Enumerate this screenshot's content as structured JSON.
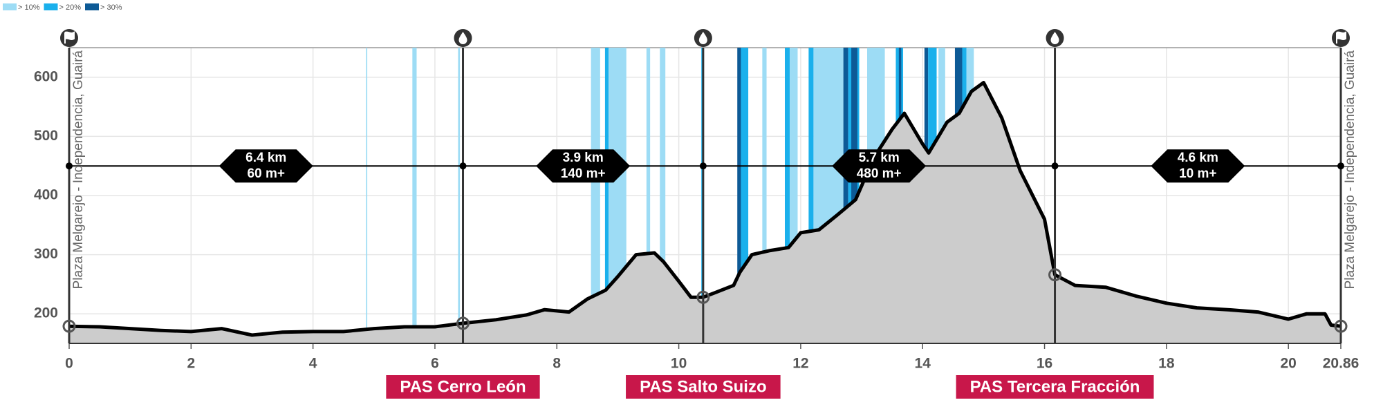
{
  "chart_data": {
    "type": "elevation-profile",
    "legend": [
      {
        "label": "> 10%",
        "color": "#9ddcf5"
      },
      {
        "label": "> 20%",
        "color": "#1ab0ec"
      },
      {
        "label": "> 30%",
        "color": "#0d5a96"
      }
    ],
    "route_name": "Plaza Melgarejo - Independencia, Guairá",
    "x": [
      0,
      0.5,
      1,
      1.5,
      2,
      2.5,
      3,
      3.5,
      4,
      4.5,
      5,
      5.5,
      6,
      6.46,
      7,
      7.5,
      7.8,
      8.2,
      8.5,
      8.8,
      9,
      9.3,
      9.6,
      9.75,
      10,
      10.2,
      10.4,
      10.6,
      10.9,
      11,
      11.2,
      11.5,
      11.8,
      12,
      12.3,
      12.6,
      12.9,
      13.2,
      13.5,
      13.7,
      14,
      14.1,
      14.4,
      14.6,
      14.8,
      15,
      15.3,
      15.6,
      16,
      16.17,
      16.5,
      17,
      17.5,
      18,
      18.5,
      19,
      19.5,
      20,
      20.3,
      20.6,
      20.7,
      20.86
    ],
    "values": [
      179,
      178,
      175,
      172,
      170,
      175,
      164,
      169,
      170,
      170,
      175,
      178,
      178,
      184,
      190,
      198,
      207,
      203,
      225,
      240,
      263,
      300,
      303,
      288,
      255,
      228,
      228,
      236,
      248,
      270,
      300,
      307,
      312,
      337,
      342,
      367,
      393,
      464,
      512,
      539,
      487,
      472,
      524,
      539,
      576,
      591,
      531,
      442,
      360,
      266,
      248,
      245,
      230,
      218,
      210,
      207,
      203,
      191,
      200,
      200,
      181,
      179
    ],
    "gradient_bands": [
      {
        "x0": 4.87,
        "x1": 4.89,
        "level": 0
      },
      {
        "x0": 5.63,
        "x1": 5.7,
        "level": 0
      },
      {
        "x0": 6.38,
        "x1": 6.41,
        "level": 0
      },
      {
        "x0": 8.56,
        "x1": 8.71,
        "level": 0
      },
      {
        "x0": 8.79,
        "x1": 8.85,
        "level": 1
      },
      {
        "x0": 8.85,
        "x1": 9.14,
        "level": 0
      },
      {
        "x0": 9.47,
        "x1": 9.53,
        "level": 0
      },
      {
        "x0": 9.69,
        "x1": 9.78,
        "level": 0
      },
      {
        "x0": 10.37,
        "x1": 10.41,
        "level": 1
      },
      {
        "x0": 10.96,
        "x1": 11.02,
        "level": 2
      },
      {
        "x0": 11.02,
        "x1": 11.14,
        "level": 1
      },
      {
        "x0": 11.37,
        "x1": 11.44,
        "level": 0
      },
      {
        "x0": 11.74,
        "x1": 11.82,
        "level": 1
      },
      {
        "x0": 11.82,
        "x1": 11.95,
        "level": 0
      },
      {
        "x0": 12.13,
        "x1": 12.21,
        "level": 1
      },
      {
        "x0": 12.21,
        "x1": 12.7,
        "level": 0
      },
      {
        "x0": 12.7,
        "x1": 12.78,
        "level": 2
      },
      {
        "x0": 12.78,
        "x1": 12.96,
        "level": 1
      },
      {
        "x0": 12.83,
        "x1": 12.93,
        "level": 2
      },
      {
        "x0": 13.09,
        "x1": 13.38,
        "level": 0
      },
      {
        "x0": 13.56,
        "x1": 13.68,
        "level": 1
      },
      {
        "x0": 13.61,
        "x1": 13.65,
        "level": 2
      },
      {
        "x0": 14.03,
        "x1": 14.09,
        "level": 2
      },
      {
        "x0": 14.09,
        "x1": 14.23,
        "level": 1
      },
      {
        "x0": 14.26,
        "x1": 14.37,
        "level": 0
      },
      {
        "x0": 14.53,
        "x1": 14.65,
        "level": 2
      },
      {
        "x0": 14.65,
        "x1": 14.72,
        "level": 1
      },
      {
        "x0": 14.72,
        "x1": 14.84,
        "level": 0
      }
    ],
    "waypoints": [
      {
        "x": 0,
        "kind": "flag"
      },
      {
        "x": 6.46,
        "kind": "water",
        "name": "PAS Cerro León"
      },
      {
        "x": 10.4,
        "kind": "water",
        "name": "PAS Salto Suizo"
      },
      {
        "x": 16.17,
        "kind": "water",
        "name": "PAS Tercera Fracción"
      },
      {
        "x": 20.86,
        "kind": "flag"
      }
    ],
    "segments": [
      {
        "distance": "6.4 km",
        "gain": "60 m+"
      },
      {
        "distance": "3.9 km",
        "gain": "140 m+"
      },
      {
        "distance": "5.7 km",
        "gain": "480 m+"
      },
      {
        "distance": "4.6 km",
        "gain": "10 m+"
      }
    ],
    "xlim": [
      0,
      20.86
    ],
    "xticks": [
      0,
      2,
      4,
      6,
      8,
      10,
      12,
      14,
      16,
      18,
      20,
      20.86
    ],
    "ylim": [
      150,
      650
    ],
    "yticks": [
      200,
      300,
      400,
      500,
      600
    ],
    "grid": true,
    "fill_color": "#cccccc",
    "line_color": "#000000",
    "label_color": "#c8174a"
  }
}
